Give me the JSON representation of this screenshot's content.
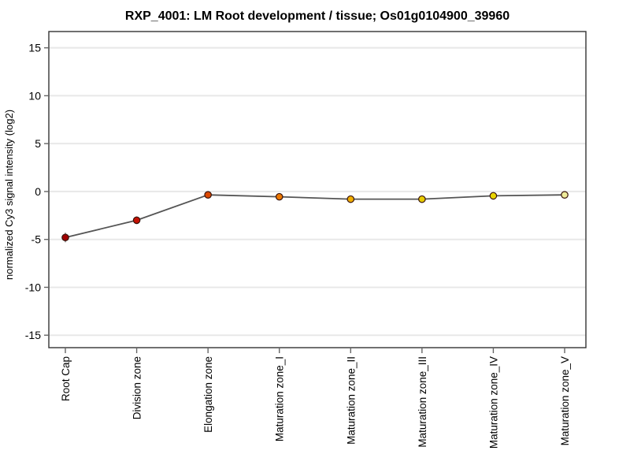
{
  "page": {
    "background": "#ffffff"
  },
  "chart_data": {
    "type": "line",
    "title": "RXP_4001: LM Root development / tissue; Os01g0104900_39960",
    "xlabel": "",
    "ylabel": "normalized Cy3 signal intensity (log2)",
    "categories": [
      "Root Cap",
      "Division zone",
      "Elongation zone",
      "Maturation zone_I",
      "Maturation zone_II",
      "Maturation zone_III",
      "Maturation zone_IV",
      "Maturation zone_V"
    ],
    "values": [
      -4.8,
      -3.0,
      -0.35,
      -0.55,
      -0.8,
      -0.8,
      -0.45,
      -0.35
    ],
    "error_bars": [
      0.5,
      0.4,
      0.25,
      0.25,
      0.3,
      0.25,
      0.35,
      0.25
    ],
    "point_colors": [
      "#a00000",
      "#c41104",
      "#dc4800",
      "#ec7800",
      "#f0ae00",
      "#e8cc00",
      "#e8d400",
      "#eeeb9a"
    ],
    "yticks": [
      15,
      10,
      5,
      0,
      -5,
      -10,
      -15
    ],
    "ylim": [
      -16.3,
      16.7
    ],
    "grid": true,
    "legend": null,
    "colors": {
      "line": "#555555",
      "marker_outline": "#38130b",
      "error_bar": "#8a8a8a",
      "grid": "#e8e8e8",
      "axis_box": "#333333",
      "tick": "#666666",
      "text": "#000000"
    }
  }
}
